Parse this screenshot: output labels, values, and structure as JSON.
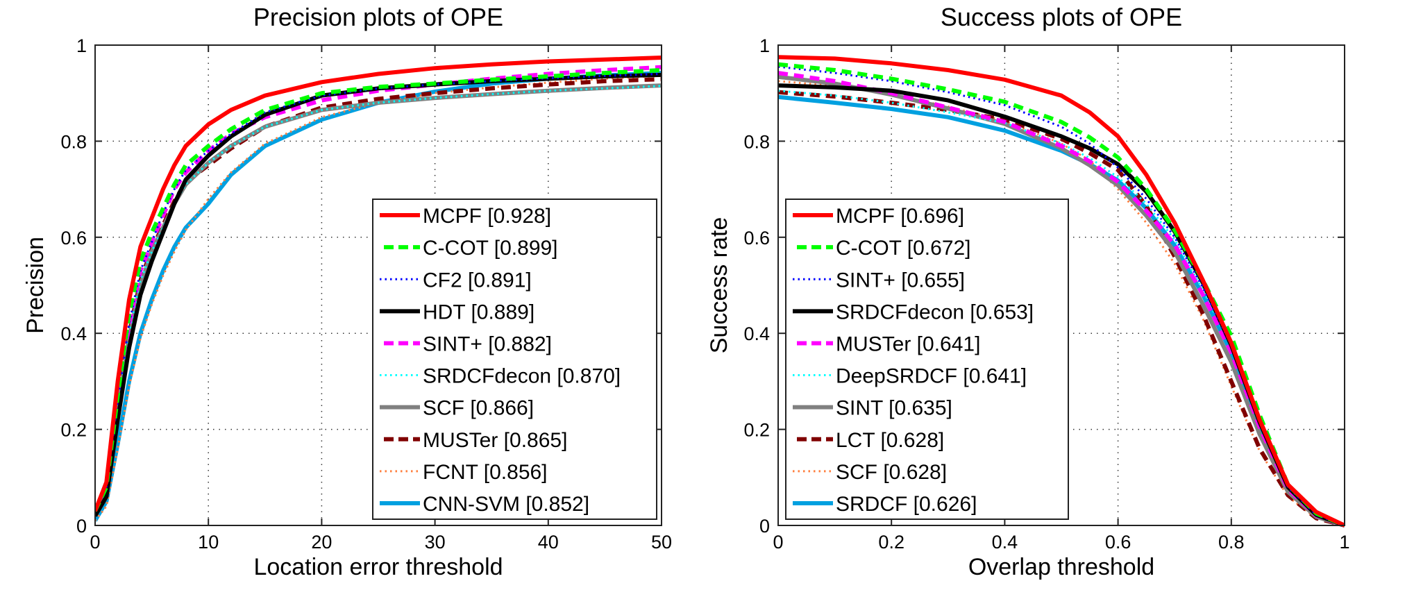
{
  "chart_data": [
    {
      "type": "line",
      "title": "Precision plots of OPE",
      "xlabel": "Location error threshold",
      "ylabel": "Precision",
      "xlim": [
        0,
        50
      ],
      "ylim": [
        0,
        1
      ],
      "xticks": [
        0,
        10,
        20,
        30,
        40,
        50
      ],
      "xtick_labels": [
        "0",
        "10",
        "20",
        "30",
        "40",
        "50"
      ],
      "yticks": [
        0,
        0.2,
        0.4,
        0.6,
        0.8,
        1
      ],
      "ytick_labels": [
        "0",
        "0.2",
        "0.4",
        "0.6",
        "0.8",
        "1"
      ],
      "grid": true,
      "legend_position": "bottom-right",
      "x": [
        0,
        1,
        2,
        3,
        4,
        5,
        6,
        7,
        8,
        10,
        12,
        15,
        20,
        25,
        30,
        35,
        40,
        45,
        50
      ],
      "series": [
        {
          "name": "MCPF",
          "score": "0.928",
          "legend": "MCPF [0.928]",
          "color": "#ff0000",
          "style": "solid",
          "values": [
            0.03,
            0.09,
            0.3,
            0.47,
            0.58,
            0.64,
            0.7,
            0.75,
            0.79,
            0.835,
            0.865,
            0.895,
            0.923,
            0.94,
            0.952,
            0.96,
            0.966,
            0.97,
            0.974
          ]
        },
        {
          "name": "C-COT",
          "score": "0.899",
          "legend": "C-COT [0.899]",
          "color": "#00ff00",
          "style": "dashed",
          "values": [
            0.03,
            0.08,
            0.27,
            0.44,
            0.55,
            0.61,
            0.66,
            0.71,
            0.75,
            0.79,
            0.825,
            0.865,
            0.9,
            0.913,
            0.92,
            0.928,
            0.935,
            0.942,
            0.948
          ]
        },
        {
          "name": "CF2",
          "score": "0.891",
          "legend": "CF2 [0.891]",
          "color": "#0000ff",
          "style": "dotted",
          "values": [
            0.03,
            0.08,
            0.26,
            0.42,
            0.53,
            0.59,
            0.65,
            0.7,
            0.74,
            0.78,
            0.815,
            0.86,
            0.895,
            0.91,
            0.918,
            0.925,
            0.931,
            0.936,
            0.94
          ]
        },
        {
          "name": "HDT",
          "score": "0.889",
          "legend": "HDT [0.889]",
          "color": "#000000",
          "style": "solid",
          "values": [
            0.02,
            0.06,
            0.22,
            0.37,
            0.48,
            0.55,
            0.61,
            0.67,
            0.72,
            0.77,
            0.81,
            0.855,
            0.895,
            0.91,
            0.918,
            0.925,
            0.93,
            0.935,
            0.938
          ]
        },
        {
          "name": "SINT+",
          "score": "0.882",
          "legend": "SINT+ [0.882]",
          "color": "#ff00ff",
          "style": "dashed",
          "values": [
            0.03,
            0.08,
            0.26,
            0.42,
            0.53,
            0.59,
            0.645,
            0.7,
            0.735,
            0.78,
            0.815,
            0.85,
            0.885,
            0.905,
            0.918,
            0.93,
            0.94,
            0.948,
            0.954
          ]
        },
        {
          "name": "SRDCFdecon",
          "score": "0.870",
          "legend": "SRDCFdecon [0.870]",
          "color": "#00ffff",
          "style": "dotted",
          "values": [
            0.03,
            0.07,
            0.24,
            0.4,
            0.51,
            0.57,
            0.62,
            0.67,
            0.71,
            0.755,
            0.79,
            0.83,
            0.865,
            0.88,
            0.89,
            0.898,
            0.905,
            0.91,
            0.915
          ]
        },
        {
          "name": "SCF",
          "score": "0.866",
          "legend": "SCF [0.866]",
          "color": "#808080",
          "style": "solid",
          "values": [
            0.02,
            0.07,
            0.24,
            0.39,
            0.5,
            0.57,
            0.62,
            0.67,
            0.71,
            0.755,
            0.79,
            0.83,
            0.865,
            0.88,
            0.89,
            0.898,
            0.905,
            0.911,
            0.916
          ]
        },
        {
          "name": "MUSTer",
          "score": "0.865",
          "legend": "MUSTer [0.865]",
          "color": "#800000",
          "style": "dashed",
          "values": [
            0.02,
            0.07,
            0.25,
            0.4,
            0.51,
            0.575,
            0.625,
            0.675,
            0.715,
            0.75,
            0.785,
            0.83,
            0.87,
            0.888,
            0.9,
            0.91,
            0.918,
            0.925,
            0.929
          ]
        },
        {
          "name": "FCNT",
          "score": "0.856",
          "legend": "FCNT [0.856]",
          "color": "#ff8040",
          "style": "dotted",
          "values": [
            0.01,
            0.04,
            0.16,
            0.29,
            0.39,
            0.46,
            0.52,
            0.57,
            0.615,
            0.68,
            0.735,
            0.795,
            0.85,
            0.88,
            0.9,
            0.912,
            0.922,
            0.93,
            0.936
          ]
        },
        {
          "name": "CNN-SVM",
          "score": "0.852",
          "legend": "CNN-SVM [0.852]",
          "color": "#00a0e0",
          "style": "solid",
          "values": [
            0.01,
            0.05,
            0.17,
            0.3,
            0.4,
            0.47,
            0.53,
            0.58,
            0.62,
            0.67,
            0.73,
            0.79,
            0.845,
            0.88,
            0.903,
            0.92,
            0.93,
            0.937,
            0.942
          ]
        }
      ]
    },
    {
      "type": "line",
      "title": "Success plots of OPE",
      "xlabel": "Overlap threshold",
      "ylabel": "Success rate",
      "xlim": [
        0,
        1
      ],
      "ylim": [
        0,
        1
      ],
      "xticks": [
        0,
        0.2,
        0.4,
        0.6,
        0.8,
        1
      ],
      "xtick_labels": [
        "0",
        "0.2",
        "0.4",
        "0.6",
        "0.8",
        "1"
      ],
      "yticks": [
        0,
        0.2,
        0.4,
        0.6,
        0.8,
        1
      ],
      "ytick_labels": [
        "0",
        "0.2",
        "0.4",
        "0.6",
        "0.8",
        "1"
      ],
      "grid": true,
      "legend_position": "bottom-left",
      "x": [
        0,
        0.1,
        0.2,
        0.3,
        0.4,
        0.5,
        0.55,
        0.6,
        0.65,
        0.7,
        0.75,
        0.8,
        0.85,
        0.9,
        0.95,
        1.0
      ],
      "series": [
        {
          "name": "MCPF",
          "score": "0.696",
          "legend": "MCPF [0.696]",
          "color": "#ff0000",
          "style": "solid",
          "values": [
            0.975,
            0.972,
            0.962,
            0.948,
            0.928,
            0.895,
            0.86,
            0.81,
            0.73,
            0.63,
            0.51,
            0.38,
            0.22,
            0.085,
            0.028,
            0.0
          ]
        },
        {
          "name": "C-COT",
          "score": "0.672",
          "legend": "C-COT [0.672]",
          "color": "#00ff00",
          "style": "dashed",
          "values": [
            0.96,
            0.948,
            0.93,
            0.908,
            0.882,
            0.84,
            0.808,
            0.766,
            0.7,
            0.615,
            0.51,
            0.395,
            0.23,
            0.085,
            0.025,
            0.0
          ]
        },
        {
          "name": "SINT+",
          "score": "0.655",
          "legend": "SINT+ [0.655]",
          "color": "#0000ff",
          "style": "dotted",
          "values": [
            0.955,
            0.942,
            0.925,
            0.902,
            0.875,
            0.83,
            0.795,
            0.745,
            0.68,
            0.6,
            0.495,
            0.375,
            0.215,
            0.08,
            0.022,
            0.0
          ]
        },
        {
          "name": "SRDCFdecon",
          "score": "0.653",
          "legend": "SRDCFdecon [0.653]",
          "color": "#000000",
          "style": "solid",
          "values": [
            0.916,
            0.912,
            0.905,
            0.885,
            0.851,
            0.81,
            0.785,
            0.752,
            0.695,
            0.612,
            0.505,
            0.375,
            0.215,
            0.08,
            0.022,
            0.0
          ]
        },
        {
          "name": "MUSTer",
          "score": "0.641",
          "legend": "MUSTer [0.641]",
          "color": "#ff00ff",
          "style": "dashed",
          "values": [
            0.942,
            0.925,
            0.9,
            0.87,
            0.84,
            0.79,
            0.758,
            0.715,
            0.655,
            0.585,
            0.48,
            0.36,
            0.205,
            0.076,
            0.021,
            0.0
          ]
        },
        {
          "name": "DeepSRDCF",
          "score": "0.641",
          "legend": "DeepSRDCF [0.641]",
          "color": "#00ffff",
          "style": "dotted",
          "values": [
            0.905,
            0.895,
            0.88,
            0.86,
            0.838,
            0.795,
            0.765,
            0.725,
            0.67,
            0.595,
            0.49,
            0.37,
            0.215,
            0.082,
            0.022,
            0.0
          ]
        },
        {
          "name": "SINT",
          "score": "0.635",
          "legend": "SINT [0.635]",
          "color": "#808080",
          "style": "solid",
          "values": [
            0.934,
            0.92,
            0.897,
            0.868,
            0.836,
            0.785,
            0.75,
            0.708,
            0.645,
            0.57,
            0.46,
            0.34,
            0.19,
            0.07,
            0.018,
            0.0
          ]
        },
        {
          "name": "LCT",
          "score": "0.628",
          "legend": "LCT [0.628]",
          "color": "#800000",
          "style": "dashed",
          "values": [
            0.902,
            0.893,
            0.88,
            0.865,
            0.845,
            0.805,
            0.775,
            0.74,
            0.665,
            0.56,
            0.44,
            0.3,
            0.16,
            0.063,
            0.015,
            0.0
          ]
        },
        {
          "name": "SCF",
          "score": "0.628",
          "legend": "SCF [0.628]",
          "color": "#ff8040",
          "style": "dotted",
          "values": [
            0.925,
            0.915,
            0.898,
            0.872,
            0.842,
            0.795,
            0.76,
            0.7,
            0.63,
            0.545,
            0.43,
            0.29,
            0.155,
            0.06,
            0.015,
            0.0
          ]
        },
        {
          "name": "SRDCF",
          "score": "0.626",
          "legend": "SRDCF [0.626]",
          "color": "#00a0e0",
          "style": "solid",
          "values": [
            0.892,
            0.88,
            0.867,
            0.85,
            0.822,
            0.78,
            0.752,
            0.718,
            0.66,
            0.583,
            0.48,
            0.36,
            0.206,
            0.078,
            0.02,
            0.0
          ]
        }
      ]
    }
  ]
}
